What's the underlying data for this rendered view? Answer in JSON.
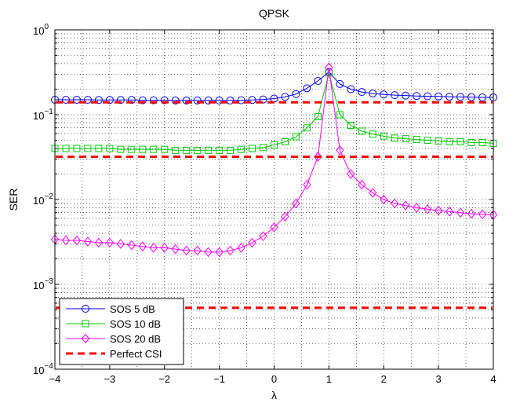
{
  "chart_data": {
    "type": "line",
    "title": "QPSK",
    "xlabel": "λ",
    "ylabel": "SER",
    "xlim": [
      -4,
      4
    ],
    "ylim": [
      0.0001,
      1
    ],
    "yscale": "log",
    "grid": true,
    "legend_position": "bottom-left",
    "x_ticks": [
      -4,
      -3,
      -2,
      -1,
      0,
      1,
      2,
      3,
      4
    ],
    "x_tick_labels": [
      "−4",
      "−3",
      "−2",
      "−1",
      "0",
      "1",
      "2",
      "3",
      "4"
    ],
    "y_ticks": [
      {
        "value": 1,
        "base": "10",
        "exp": "0"
      },
      {
        "value": 0.1,
        "base": "10",
        "exp": "−1"
      },
      {
        "value": 0.01,
        "base": "10",
        "exp": "−2"
      },
      {
        "value": 0.001,
        "base": "10",
        "exp": "−3"
      },
      {
        "value": 0.0001,
        "base": "10",
        "exp": "−4"
      }
    ],
    "x": [
      -4.0,
      -3.8,
      -3.6,
      -3.4,
      -3.2,
      -3.0,
      -2.8,
      -2.6,
      -2.4,
      -2.2,
      -2.0,
      -1.8,
      -1.6,
      -1.4,
      -1.2,
      -1.0,
      -0.8,
      -0.6,
      -0.4,
      -0.2,
      0.0,
      0.2,
      0.4,
      0.6,
      0.8,
      1.0,
      1.2,
      1.4,
      1.6,
      1.8,
      2.0,
      2.2,
      2.4,
      2.6,
      2.8,
      3.0,
      3.2,
      3.4,
      3.6,
      3.8,
      4.0
    ],
    "series": [
      {
        "name": "SOS 5 dB",
        "color": "#0000ff",
        "marker": "circle",
        "values": [
          0.15,
          0.15,
          0.15,
          0.15,
          0.149,
          0.149,
          0.149,
          0.149,
          0.148,
          0.148,
          0.148,
          0.147,
          0.147,
          0.147,
          0.147,
          0.147,
          0.147,
          0.148,
          0.149,
          0.151,
          0.155,
          0.162,
          0.175,
          0.205,
          0.25,
          0.32,
          0.23,
          0.2,
          0.185,
          0.178,
          0.173,
          0.17,
          0.168,
          0.166,
          0.165,
          0.164,
          0.163,
          0.162,
          0.161,
          0.16,
          0.16
        ]
      },
      {
        "name": "SOS 10 dB",
        "color": "#00cc00",
        "marker": "square",
        "values": [
          0.04,
          0.04,
          0.04,
          0.04,
          0.04,
          0.04,
          0.039,
          0.039,
          0.039,
          0.039,
          0.039,
          0.038,
          0.038,
          0.038,
          0.038,
          0.038,
          0.038,
          0.039,
          0.04,
          0.041,
          0.044,
          0.048,
          0.055,
          0.07,
          0.095,
          0.31,
          0.1,
          0.075,
          0.064,
          0.059,
          0.056,
          0.053,
          0.052,
          0.051,
          0.05,
          0.049,
          0.048,
          0.048,
          0.047,
          0.047,
          0.046
        ]
      },
      {
        "name": "SOS 20 dB",
        "color": "#ff00ff",
        "marker": "diamond",
        "values": [
          0.0034,
          0.0033,
          0.0033,
          0.0032,
          0.0031,
          0.0031,
          0.003,
          0.0029,
          0.0028,
          0.0027,
          0.0027,
          0.0026,
          0.0025,
          0.0025,
          0.0024,
          0.0024,
          0.0025,
          0.0027,
          0.0031,
          0.0037,
          0.0047,
          0.0063,
          0.009,
          0.015,
          0.032,
          0.36,
          0.038,
          0.02,
          0.015,
          0.012,
          0.01,
          0.009,
          0.0085,
          0.008,
          0.0077,
          0.0074,
          0.0072,
          0.007,
          0.0068,
          0.0067,
          0.0066
        ]
      },
      {
        "name": "Perfect CSI",
        "color": "#ff0000",
        "marker": "none",
        "dashed": true,
        "constant_values": [
          0.14,
          0.032,
          0.00053
        ]
      }
    ]
  }
}
